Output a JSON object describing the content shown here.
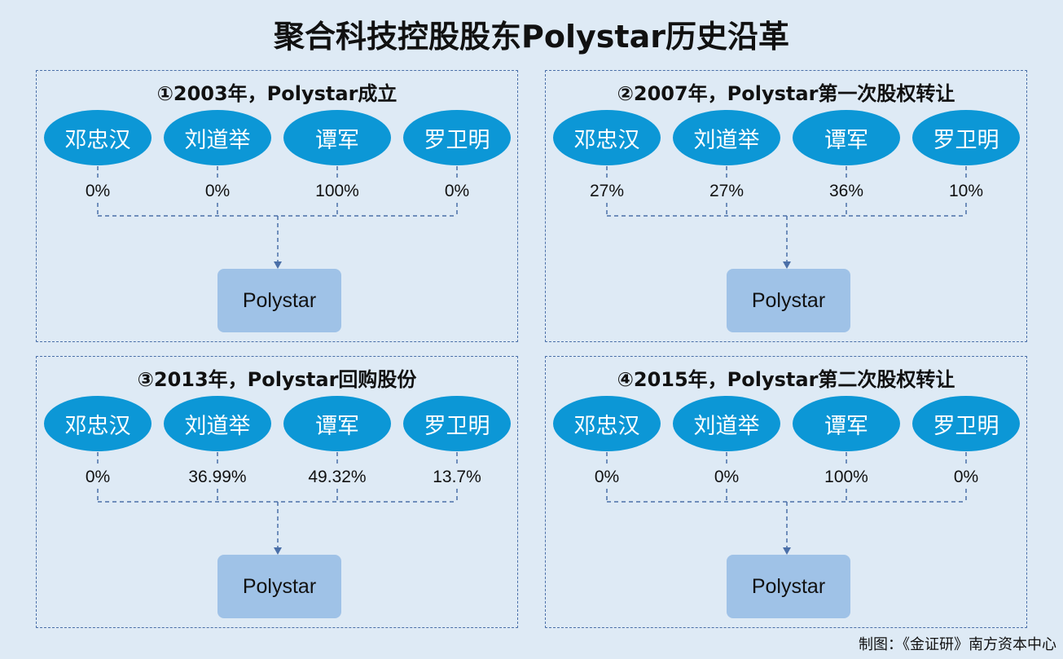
{
  "title": "聚合科技控股股东Polystar历史沿革",
  "names": [
    "邓忠汉",
    "刘道举",
    "谭军",
    "罗卫明"
  ],
  "company": "Polystar",
  "panels": [
    {
      "title": "①2003年，Polystar成立",
      "shares": [
        "0%",
        "0%",
        "100%",
        "0%"
      ]
    },
    {
      "title": "②2007年，Polystar第一次股权转让",
      "shares": [
        "27%",
        "27%",
        "36%",
        "10%"
      ]
    },
    {
      "title": "③2013年，Polystar回购股份",
      "shares": [
        "0%",
        "36.99%",
        "49.32%",
        "13.7%"
      ]
    },
    {
      "title": "④2015年，Polystar第二次股权转让",
      "shares": [
        "0%",
        "0%",
        "100%",
        "0%"
      ]
    }
  ],
  "credit": "制图：《金证研》南方资本中心",
  "colors": {
    "ellipse": "#0c97d6",
    "box": "#9fc2e7",
    "line": "#4a6fa8",
    "background": "#deeaf5"
  }
}
